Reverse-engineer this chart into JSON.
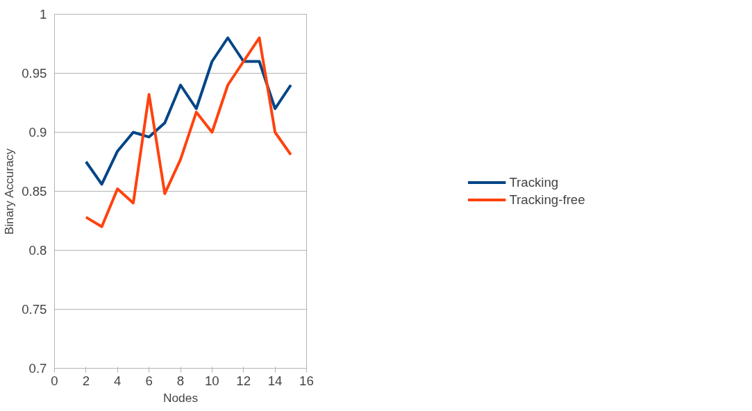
{
  "chart_data": {
    "type": "line",
    "xlabel": "Nodes",
    "ylabel": "Binary Accuracy",
    "x": [
      2,
      3,
      4,
      5,
      6,
      7,
      8,
      9,
      10,
      11,
      12,
      13,
      14,
      15
    ],
    "series": [
      {
        "name": "Tracking",
        "color": "#004586",
        "values": [
          0.875,
          0.856,
          0.884,
          0.9,
          0.896,
          0.908,
          0.94,
          0.92,
          0.96,
          0.98,
          0.96,
          0.96,
          0.92,
          0.94
        ]
      },
      {
        "name": "Tracking-free",
        "color": "#ff420e",
        "values": [
          0.828,
          0.82,
          0.852,
          0.84,
          0.932,
          0.848,
          0.877,
          0.917,
          0.9,
          0.94,
          0.96,
          0.98,
          0.9,
          0.881
        ]
      }
    ],
    "xlim": [
      0,
      16
    ],
    "xticks": [
      0,
      2,
      4,
      6,
      8,
      10,
      12,
      14,
      16
    ],
    "ylim": [
      0.7,
      1
    ],
    "yticks": [
      0.7,
      0.75,
      0.8,
      0.85,
      0.9,
      0.95,
      1
    ],
    "grid": "y",
    "legend": "right",
    "marker": "none",
    "line_style": "solid"
  }
}
